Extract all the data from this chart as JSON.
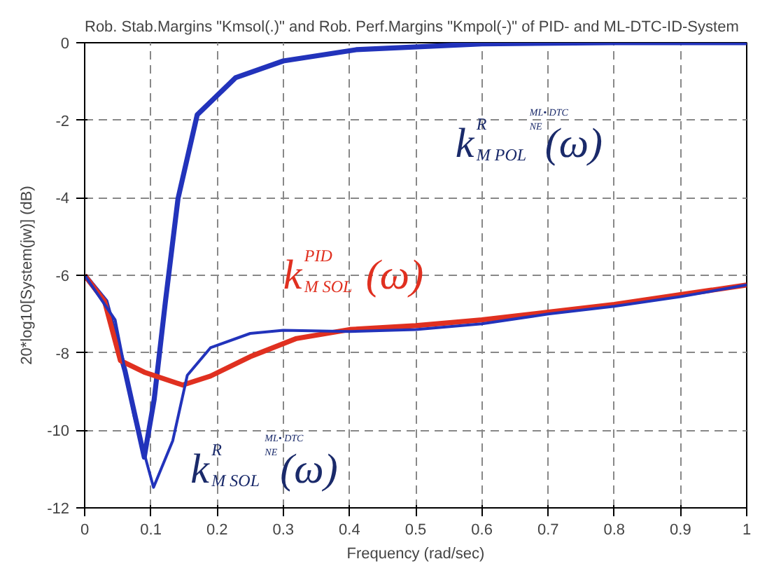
{
  "chart_data": {
    "type": "line",
    "title": "Rob. Stab.Margins \"Kmsol(.)\" and Rob. Perf.Margins \"Kmpol(-)\" of PID- and ML-DTC-ID-System",
    "xlabel": "Frequency (rad/sec)",
    "ylabel": "20*log10[System(jw)] (dB)",
    "xlim": [
      0,
      1
    ],
    "ylim": [
      -12,
      0
    ],
    "xticks": [
      0,
      0.1,
      0.2,
      0.3,
      0.4,
      0.5,
      0.6,
      0.7,
      0.8,
      0.9,
      1
    ],
    "yticks": [
      -12,
      -10,
      -8,
      -6,
      -4,
      -2,
      0
    ],
    "grid": true,
    "line_style": "solid",
    "series": [
      {
        "color": "#2233bb",
        "x": [
          0,
          0.032,
          0.061,
          0.09,
          0.105,
          0.122,
          0.141,
          0.17,
          0.228,
          0.3,
          0.41,
          0.6,
          0.8,
          1.0
        ],
        "values": [
          -6,
          -6.67,
          -8.47,
          -10.69,
          -9.2,
          -6.67,
          -4.02,
          -1.86,
          -0.9,
          -0.47,
          -0.18,
          -0.03,
          0,
          0
        ]
      },
      {
        "color": "#e03020",
        "x": [
          0,
          0.03,
          0.054,
          0.09,
          0.148,
          0.19,
          0.25,
          0.32,
          0.4,
          0.5,
          0.6,
          0.7,
          0.8,
          0.9,
          1.0
        ],
        "values": [
          -6,
          -6.67,
          -8.2,
          -8.5,
          -8.83,
          -8.6,
          -8.1,
          -7.63,
          -7.4,
          -7.3,
          -7.15,
          -6.95,
          -6.75,
          -6.5,
          -6.25
        ]
      },
      {
        "color": "#2233bb",
        "x": [
          0,
          0.046,
          0.075,
          0.104,
          0.133,
          0.155,
          0.19,
          0.25,
          0.3,
          0.4,
          0.5,
          0.6,
          0.7,
          0.8,
          0.9,
          1.0
        ],
        "values": [
          -6,
          -7.15,
          -9.66,
          -11.47,
          -10.27,
          -8.58,
          -7.87,
          -7.5,
          -7.42,
          -7.45,
          -7.4,
          -7.25,
          -7.0,
          -6.8,
          -6.55,
          -6.25
        ]
      }
    ],
    "annotations": [
      "k$^{R}$$_{M POL}$$^{ML• DTC}$$_{NE}$(ω)",
      "k$^{PID}$$_{M SOL}$(ω)",
      "k$^{R}$$_{M SOL}$$^{ML• DTC}$$_{NE}$(ω)"
    ]
  }
}
